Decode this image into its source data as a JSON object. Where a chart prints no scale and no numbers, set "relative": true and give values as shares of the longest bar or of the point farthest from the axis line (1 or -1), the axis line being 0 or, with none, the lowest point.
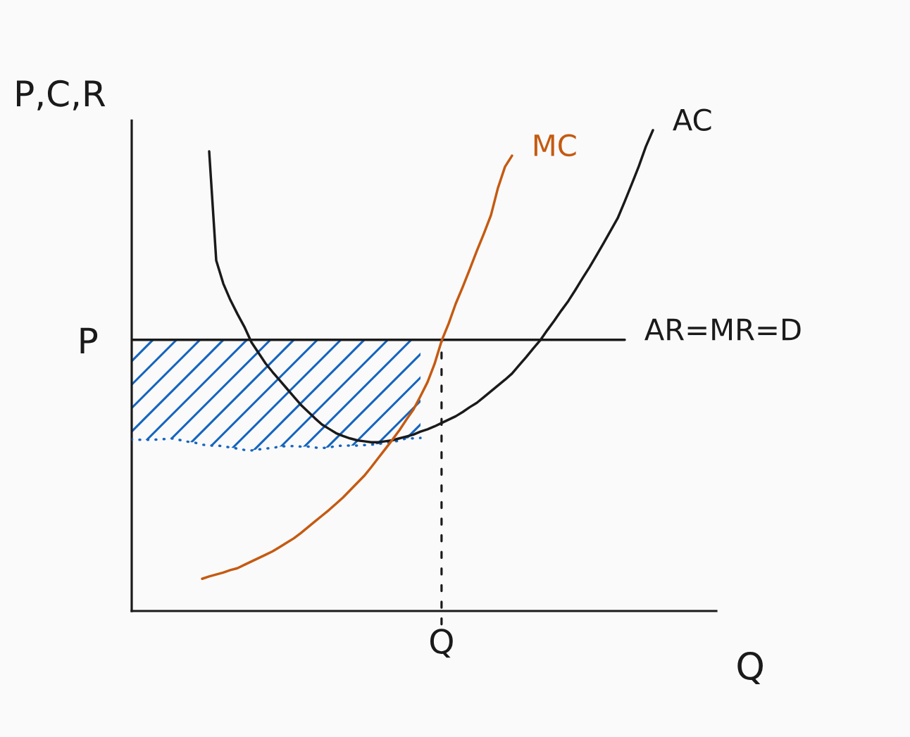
{
  "chart_data": {
    "type": "line",
    "relative": true,
    "ylabel": "P,C,R",
    "xlabel": "Q",
    "categories": [
      null,
      null,
      null,
      null,
      null,
      null,
      null,
      null,
      null,
      null,
      null,
      null,
      null,
      null,
      null,
      null,
      null,
      null,
      null,
      null,
      null,
      null,
      null,
      null,
      null,
      null,
      null,
      null,
      null,
      null,
      null,
      null,
      null,
      null,
      null,
      null,
      null,
      null,
      null,
      null,
      null,
      null,
      null,
      null,
      null,
      null,
      null,
      null,
      null,
      null,
      null,
      null,
      null,
      null,
      null,
      null,
      null,
      null,
      null,
      null,
      null,
      null,
      null,
      null,
      null,
      null,
      null,
      null,
      null,
      null,
      null,
      null,
      null,
      null,
      null,
      null,
      null,
      null,
      null,
      null,
      null,
      null,
      null,
      null
    ],
    "annotations": [
      "P",
      "Q"
    ],
    "series": [
      {
        "color": "#1565c0",
        "line_style": "dotted",
        "values": [
          0.357,
          0.356,
          0.356,
          0.356,
          0.357,
          0.358,
          0.359,
          0.355,
          0.352,
          0.35,
          0.346,
          0.344,
          0.344,
          0.343,
          0.34,
          0.338,
          0.335,
          0.334,
          0.336,
          0.338,
          0.339,
          0.342,
          0.343,
          0.343,
          0.342,
          0.342,
          0.34,
          0.339,
          0.34,
          0.343,
          0.344,
          0.344,
          0.344,
          0.345,
          0.346,
          0.347,
          0.35,
          0.351,
          0.355,
          0.359,
          0.359,
          0.36,
          null,
          null,
          null,
          null,
          null,
          null,
          null,
          null,
          null,
          null,
          null,
          null,
          null,
          null,
          null,
          null,
          null,
          null,
          null,
          null,
          null,
          null,
          null,
          null,
          null,
          null,
          null,
          null,
          null,
          null,
          null,
          null,
          null,
          null,
          null,
          null,
          null,
          null,
          null,
          null,
          null,
          null
        ]
      },
      {
        "name": "AR=MR=D",
        "color": "#1a1a1a",
        "values": [
          0.564,
          0.564,
          0.564,
          0.564,
          0.564,
          0.564,
          0.564,
          0.564,
          0.564,
          0.564,
          0.564,
          0.564,
          0.564,
          0.564,
          0.564,
          0.564,
          0.564,
          0.564,
          0.564,
          0.564,
          0.564,
          0.564,
          0.564,
          0.564,
          0.564,
          0.564,
          0.564,
          0.564,
          0.564,
          0.564,
          0.564,
          0.564,
          0.564,
          0.564,
          0.564,
          0.564,
          0.564,
          0.564,
          0.564,
          0.564,
          0.564,
          0.564,
          0.564,
          0.564,
          0.564,
          0.564,
          0.564,
          0.564,
          0.564,
          0.564,
          0.564,
          0.564,
          0.564,
          0.564,
          0.564,
          0.564,
          0.564,
          0.564,
          0.564,
          0.564,
          0.564,
          0.564,
          0.564,
          0.564,
          0.564,
          0.564,
          0.564,
          0.564,
          0.564,
          0.564,
          0.564,
          null,
          null,
          null,
          null,
          null,
          null,
          null,
          null,
          null,
          null,
          null,
          null,
          null
        ]
      },
      {
        "name": "AC",
        "color": "#1a1a1a",
        "values": [
          null,
          null,
          null,
          null,
          null,
          null,
          null,
          null,
          null,
          null,
          null,
          0.956,
          0.729,
          0.681,
          0.647,
          0.618,
          0.591,
          0.559,
          0.537,
          0.515,
          0.497,
          0.48,
          0.463,
          0.446,
          0.429,
          0.415,
          0.401,
          0.388,
          0.379,
          0.37,
          0.364,
          0.359,
          0.355,
          0.353,
          0.351,
          0.351,
          0.353,
          0.355,
          0.359,
          0.363,
          0.367,
          0.373,
          0.378,
          0.384,
          0.391,
          0.398,
          0.405,
          0.414,
          0.424,
          0.433,
          0.445,
          0.457,
          0.469,
          0.481,
          0.494,
          0.511,
          0.528,
          0.546,
          0.563,
          0.584,
          0.604,
          0.625,
          0.645,
          0.668,
          0.692,
          0.715,
          0.74,
          0.765,
          0.791,
          0.817,
          0.852,
          0.888,
          0.925,
          0.966,
          1.0,
          null,
          null,
          null,
          null,
          null,
          null,
          null,
          null,
          null
        ]
      },
      {
        "name": "MC",
        "color": "#c55a11",
        "values": [
          null,
          null,
          null,
          null,
          null,
          null,
          null,
          null,
          null,
          null,
          0.067,
          0.072,
          0.076,
          0.08,
          0.085,
          0.089,
          0.096,
          0.103,
          0.11,
          0.117,
          0.124,
          0.133,
          0.142,
          0.151,
          0.162,
          0.174,
          0.186,
          0.198,
          0.21,
          0.223,
          0.236,
          0.251,
          0.266,
          0.281,
          0.299,
          0.318,
          0.337,
          0.356,
          0.376,
          0.398,
          0.419,
          0.447,
          0.476,
          0.514,
          0.562,
          0.598,
          0.639,
          0.674,
          0.711,
          0.749,
          0.785,
          0.823,
          0.88,
          0.924,
          0.947,
          null,
          null,
          null,
          null,
          null,
          null,
          null,
          null,
          null,
          null,
          null,
          null,
          null,
          null,
          null,
          null,
          null,
          null,
          null,
          null,
          null,
          null,
          null,
          null,
          null,
          null,
          null,
          null,
          null
        ]
      }
    ]
  }
}
